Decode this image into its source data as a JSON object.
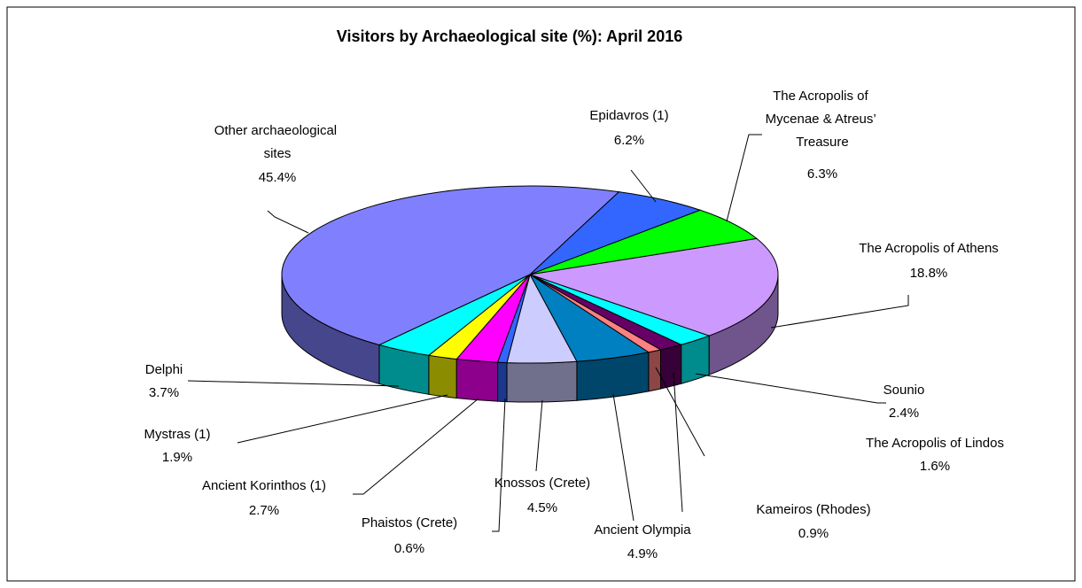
{
  "chart_data": {
    "type": "pie3d",
    "title": "Visitors by Archaeological site (%): April 2016",
    "categories": [
      "Epidavros (1)",
      "The Acropolis of Mycenae & Atreus’ Treasure",
      "The Acropolis of Athens",
      "Sounio",
      "The Acropolis of Lindos",
      "Kameiros (Rhodes)",
      "Ancient Olympia",
      "Knossos (Crete)",
      "Phaistos (Crete)",
      "Ancient Korinthos (1)",
      "Mystras (1)",
      "Delphi",
      "Other archaeological sites"
    ],
    "values": [
      6.2,
      6.3,
      18.8,
      2.4,
      1.6,
      0.9,
      4.9,
      4.5,
      0.6,
      2.7,
      1.9,
      3.7,
      45.4
    ],
    "value_labels": [
      "6.2%",
      "6.3%",
      "18.8%",
      "2.4%",
      "1.6%",
      "0.9%",
      "4.9%",
      "4.5%",
      "0.6%",
      "2.7%",
      "1.9%",
      "3.7%",
      "45.4%"
    ],
    "colors": [
      "#3366ff",
      "#00ff00",
      "#cc99ff",
      "#00ffff",
      "#660066",
      "#ff8080",
      "#0080c0",
      "#ccccff",
      "#3366ff",
      "#ff00ff",
      "#ffff00",
      "#00ffff",
      "#8080ff"
    ]
  }
}
